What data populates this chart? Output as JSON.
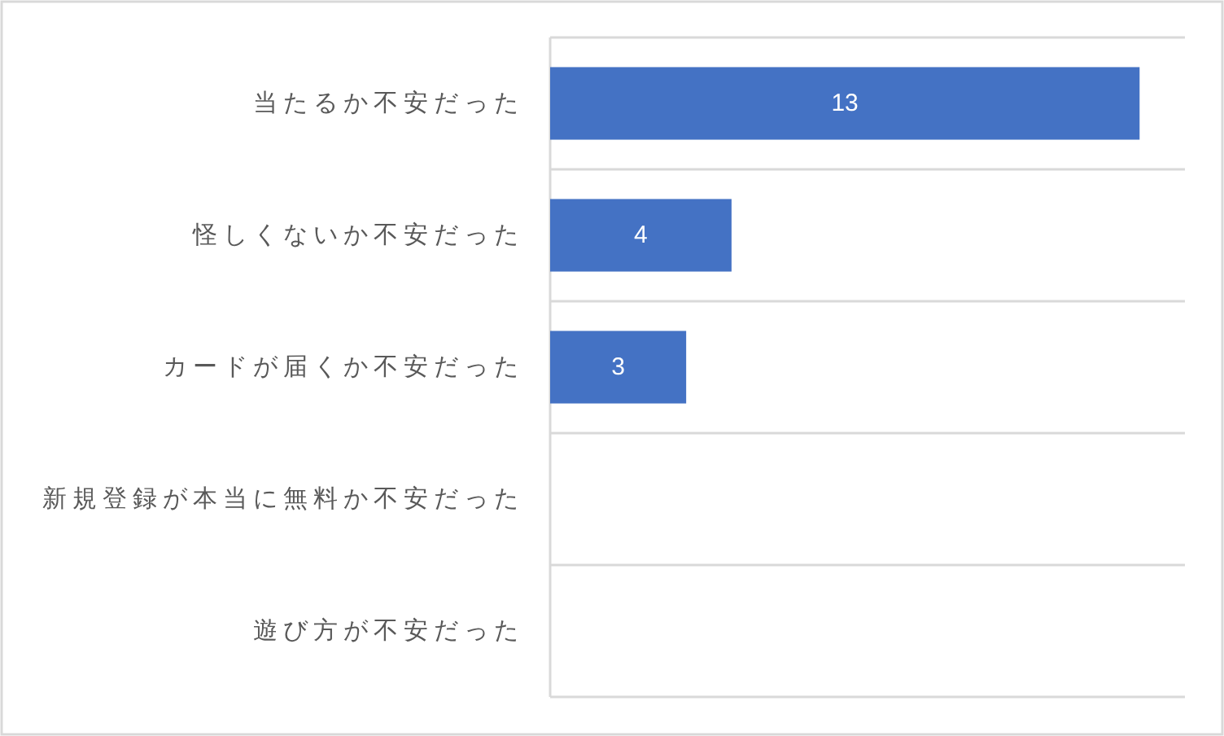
{
  "chart_data": {
    "type": "bar",
    "orientation": "horizontal",
    "categories": [
      "当たるか不安だった",
      "怪しくないか不安だった",
      "カードが届くか不安だった",
      "新規登録が本当に無料か不安だった",
      "遊び方が不安だった"
    ],
    "values": [
      13,
      4,
      3,
      0,
      0
    ],
    "color": "#4472c4",
    "xlim": [
      0,
      14
    ],
    "value_labels": [
      "13",
      "4",
      "3",
      null,
      null
    ],
    "grid": "y",
    "tick_labels": "y"
  }
}
